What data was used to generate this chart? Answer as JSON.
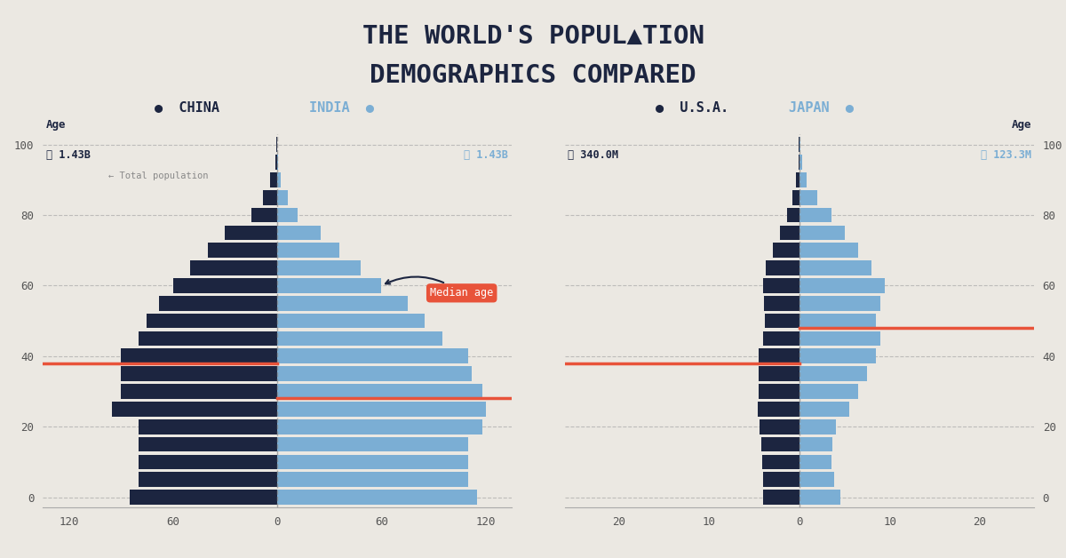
{
  "background_color": "#ebe8e2",
  "dark_bar_color": "#1c2540",
  "light_bar_color": "#7baed4",
  "median_color": "#e8533a",
  "title_color": "#1c2540",
  "grid_color": "#aaaaaa",
  "text_color": "#555555",
  "ages_5yr": [
    0,
    5,
    10,
    15,
    20,
    25,
    30,
    35,
    40,
    45,
    50,
    55,
    60,
    65,
    70,
    75,
    80,
    85,
    90,
    95,
    100
  ],
  "china_5yr": [
    85,
    80,
    80,
    80,
    80,
    95,
    90,
    90,
    90,
    80,
    75,
    68,
    60,
    50,
    40,
    30,
    15,
    8,
    4,
    1,
    0.3
  ],
  "india_5yr": [
    115,
    110,
    110,
    110,
    118,
    120,
    118,
    112,
    110,
    95,
    85,
    75,
    60,
    48,
    36,
    25,
    12,
    6,
    2,
    0.5,
    0.1
  ],
  "usa_5yr": [
    4.0,
    4.0,
    4.1,
    4.2,
    4.4,
    4.6,
    4.5,
    4.5,
    4.5,
    4.0,
    3.8,
    3.9,
    4.0,
    3.7,
    3.0,
    2.2,
    1.4,
    0.8,
    0.4,
    0.1,
    0.05
  ],
  "japan_5yr": [
    4.5,
    3.8,
    3.5,
    3.6,
    4.0,
    5.5,
    6.5,
    7.5,
    8.5,
    9.0,
    8.5,
    9.0,
    9.5,
    8.0,
    6.5,
    5.0,
    3.5,
    2.0,
    0.8,
    0.3,
    0.05
  ],
  "china_median": 38,
  "india_median": 28,
  "usa_median": 38,
  "japan_median": 48,
  "china_pop": "1.43B",
  "india_pop": "1.43B",
  "usa_pop": "340.0M",
  "japan_pop": "123.3M",
  "xlim_ci": 135,
  "xlim_uj": 26
}
